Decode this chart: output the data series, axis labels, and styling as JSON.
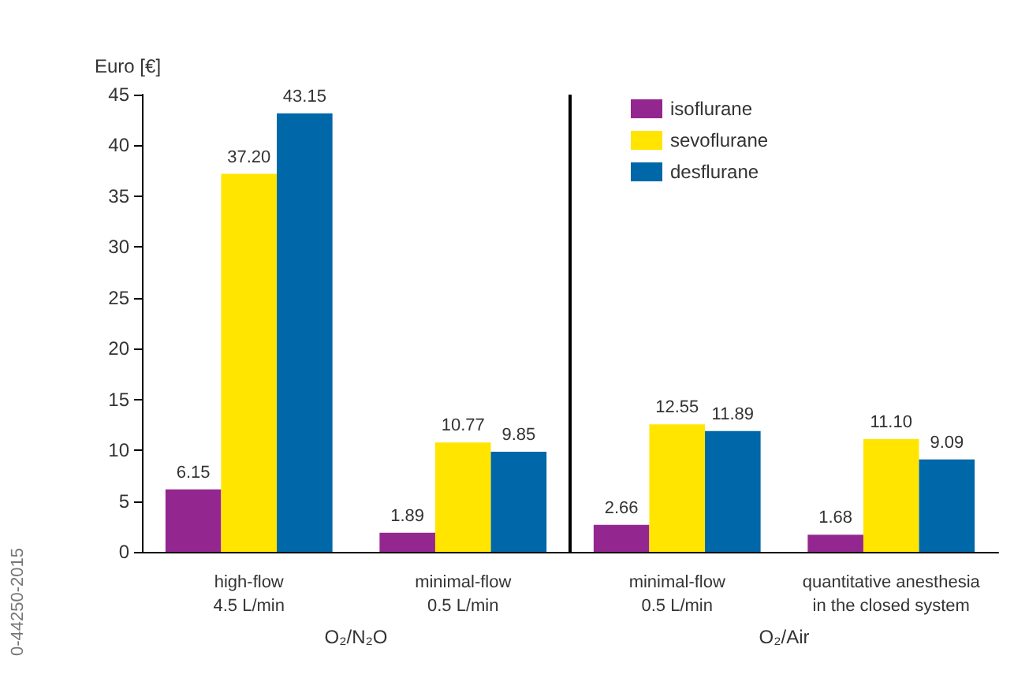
{
  "chart_data": {
    "type": "bar",
    "ylabel": "Euro [€]",
    "categories": [
      "high-flow\n4.5 L/min",
      "minimal-flow\n0.5 L/min",
      "minimal-flow\n0.5 L/min",
      "quantitative anesthesia\nin the closed system"
    ],
    "series": [
      {
        "name": "isoflurane",
        "color": "#93278f",
        "values": [
          6.15,
          1.89,
          2.66,
          1.68
        ],
        "value_labels": [
          "6.15",
          "1.89",
          "2.66",
          "1.68"
        ]
      },
      {
        "name": "sevoflurane",
        "color": "#ffe500",
        "values": [
          37.2,
          10.77,
          12.55,
          11.1
        ],
        "value_labels": [
          "37.20",
          "10.77",
          "12.55",
          "11.10"
        ]
      },
      {
        "name": "desflurane",
        "color": "#0067a9",
        "values": [
          43.15,
          9.85,
          11.89,
          9.09
        ],
        "value_labels": [
          "43.15",
          "9.85",
          "11.89",
          "9.09"
        ]
      }
    ],
    "ylim": [
      0,
      45
    ],
    "yticks": [
      0,
      5,
      10,
      15,
      20,
      25,
      30,
      35,
      40,
      45
    ],
    "legend": "top right",
    "grid": false,
    "annotations": [
      "O₂/N₂O",
      "O₂/Air",
      "0-44250-2015"
    ]
  }
}
